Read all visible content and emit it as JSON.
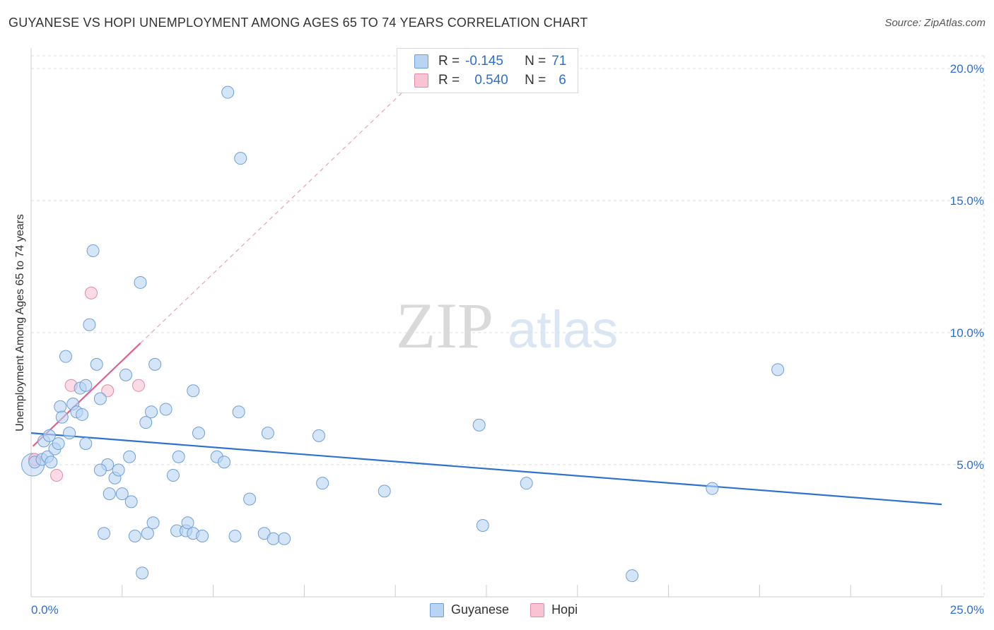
{
  "header": {
    "title": "GUYANESE VS HOPI UNEMPLOYMENT AMONG AGES 65 TO 74 YEARS CORRELATION CHART",
    "source": "Source: ZipAtlas.com"
  },
  "watermark": {
    "zip": "ZIP",
    "atlas": "atlas"
  },
  "colors": {
    "guyanese_fill": "#b9d3f3",
    "guyanese_stroke": "#6f9fd8",
    "guyanese_line": "#2e72d0",
    "hopi_fill": "#f8c4d3",
    "hopi_stroke": "#e38aa6",
    "hopi_line": "#e0608e",
    "tick_text": "#2d6fcf"
  },
  "legend": {
    "guyanese": {
      "r_label": "R =",
      "r_value": "-0.145",
      "n_label": "N =",
      "n_value": "71",
      "name": "Guyanese"
    },
    "hopi": {
      "r_label": "R =",
      "r_value": "0.540",
      "n_label": "N =",
      "n_value": "6",
      "name": "Hopi"
    }
  },
  "chart_data": {
    "type": "scatter",
    "title": "GUYANESE VS HOPI UNEMPLOYMENT AMONG AGES 65 TO 74 YEARS CORRELATION CHART",
    "xlabel": "",
    "ylabel": "Unemployment Among Ages 65 to 74 years",
    "xlim": [
      0,
      25
    ],
    "ylim": [
      0,
      20
    ],
    "x_tick_labels": [
      "0.0%",
      "25.0%"
    ],
    "y_ticks": [
      5,
      10,
      15,
      20
    ],
    "y_tick_labels": [
      "5.0%",
      "10.0%",
      "15.0%",
      "20.0%"
    ],
    "grid": true,
    "series": [
      {
        "name": "Guyanese",
        "points": [
          [
            0.1,
            5.1
          ],
          [
            0.3,
            5.2
          ],
          [
            0.35,
            5.9
          ],
          [
            0.45,
            5.3
          ],
          [
            0.5,
            6.1
          ],
          [
            0.55,
            5.1
          ],
          [
            0.65,
            5.6
          ],
          [
            0.75,
            5.8
          ],
          [
            0.8,
            7.2
          ],
          [
            0.85,
            6.8
          ],
          [
            0.95,
            9.1
          ],
          [
            1.05,
            6.2
          ],
          [
            1.15,
            7.3
          ],
          [
            1.25,
            7.0
          ],
          [
            1.35,
            7.9
          ],
          [
            1.4,
            6.9
          ],
          [
            1.5,
            8.0
          ],
          [
            1.5,
            5.8
          ],
          [
            1.6,
            10.3
          ],
          [
            1.7,
            13.1
          ],
          [
            1.8,
            8.8
          ],
          [
            1.9,
            7.5
          ],
          [
            2.0,
            2.4
          ],
          [
            2.1,
            5.0
          ],
          [
            2.15,
            3.9
          ],
          [
            2.3,
            4.5
          ],
          [
            2.4,
            4.8
          ],
          [
            1.9,
            4.8
          ],
          [
            2.5,
            3.9
          ],
          [
            2.6,
            8.4
          ],
          [
            2.7,
            5.3
          ],
          [
            2.75,
            3.6
          ],
          [
            2.85,
            2.3
          ],
          [
            3.0,
            11.9
          ],
          [
            3.05,
            0.9
          ],
          [
            3.15,
            6.6
          ],
          [
            3.2,
            2.4
          ],
          [
            3.3,
            7.0
          ],
          [
            3.35,
            2.8
          ],
          [
            3.4,
            8.8
          ],
          [
            3.7,
            7.1
          ],
          [
            3.9,
            4.6
          ],
          [
            4.0,
            2.5
          ],
          [
            4.05,
            5.3
          ],
          [
            4.25,
            2.5
          ],
          [
            4.3,
            2.8
          ],
          [
            4.45,
            2.4
          ],
          [
            4.45,
            7.8
          ],
          [
            4.6,
            6.2
          ],
          [
            4.7,
            2.3
          ],
          [
            5.1,
            5.3
          ],
          [
            5.3,
            5.1
          ],
          [
            5.4,
            19.1
          ],
          [
            5.6,
            2.3
          ],
          [
            5.7,
            7.0
          ],
          [
            5.75,
            16.6
          ],
          [
            6.0,
            3.7
          ],
          [
            6.4,
            2.4
          ],
          [
            6.5,
            6.2
          ],
          [
            6.65,
            2.2
          ],
          [
            6.95,
            2.2
          ],
          [
            7.9,
            6.1
          ],
          [
            8.0,
            4.3
          ],
          [
            9.7,
            4.0
          ],
          [
            12.3,
            6.5
          ],
          [
            12.4,
            2.7
          ],
          [
            13.6,
            4.3
          ],
          [
            16.5,
            0.8
          ],
          [
            18.7,
            4.1
          ],
          [
            20.5,
            8.6
          ],
          [
            0.05,
            5.0
          ]
        ],
        "trend": {
          "x": [
            0,
            25
          ],
          "y": [
            6.2,
            3.5
          ]
        }
      },
      {
        "name": "Hopi",
        "points": [
          [
            0.1,
            5.2
          ],
          [
            0.7,
            4.6
          ],
          [
            1.1,
            8.0
          ],
          [
            1.65,
            11.5
          ],
          [
            2.1,
            7.8
          ],
          [
            2.95,
            8.0
          ]
        ],
        "trend_solid": {
          "x": [
            0.05,
            3.0
          ],
          "y": [
            5.7,
            9.6
          ]
        },
        "trend_dashed": {
          "x": [
            3.0,
            10.5
          ],
          "y": [
            9.6,
            19.5
          ]
        }
      }
    ]
  }
}
